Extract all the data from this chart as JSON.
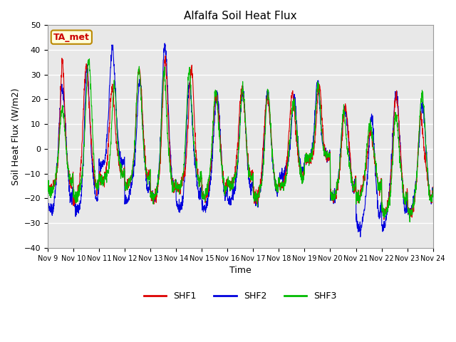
{
  "title": "Alfalfa Soil Heat Flux",
  "ylabel": "Soil Heat Flux (W/m2)",
  "xlabel": "Time",
  "ylim": [
    -40,
    50
  ],
  "annotation_text": "TA_met",
  "annotation_color": "#cc0000",
  "annotation_bg": "#ffffdd",
  "annotation_border": "#bb8800",
  "background_color": "#e8e8e8",
  "line_colors": {
    "SHF1": "#dd0000",
    "SHF2": "#0000dd",
    "SHF3": "#00bb00"
  },
  "x_tick_labels": [
    "Nov 9",
    "Nov 10",
    "Nov 11",
    "Nov 12",
    "Nov 13",
    "Nov 14",
    "Nov 15",
    "Nov 16",
    "Nov 17",
    "Nov 18",
    "Nov 19",
    "Nov 20",
    "Nov 21",
    "Nov 22",
    "Nov 23",
    "Nov 24"
  ],
  "n_days": 15,
  "pts_per_day": 144,
  "day_peak_shf1": [
    38,
    38,
    29,
    35,
    40,
    35,
    26,
    27,
    26,
    25,
    27,
    20,
    11,
    27,
    22
  ],
  "day_peak_shf2": [
    31,
    41,
    42,
    30,
    47,
    35,
    26,
    27,
    27,
    22,
    28,
    20,
    20,
    27,
    21
  ],
  "day_peak_shf3": [
    20,
    39,
    29,
    35,
    35,
    35,
    26,
    27,
    27,
    22,
    27,
    20,
    14,
    21,
    27
  ],
  "day_trough_shf1": [
    -17,
    -20,
    -13,
    -15,
    -20,
    -16,
    -20,
    -15,
    -20,
    -15,
    -4,
    -20,
    -20,
    -26,
    -26
  ],
  "day_trough_shf2": [
    -25,
    -25,
    -7,
    -21,
    -20,
    -24,
    -24,
    -21,
    -21,
    -11,
    -4,
    -20,
    -33,
    -31,
    -26
  ],
  "day_trough_shf3": [
    -17,
    -20,
    -13,
    -15,
    -20,
    -16,
    -20,
    -15,
    -20,
    -15,
    -4,
    -20,
    -20,
    -26,
    -26
  ]
}
